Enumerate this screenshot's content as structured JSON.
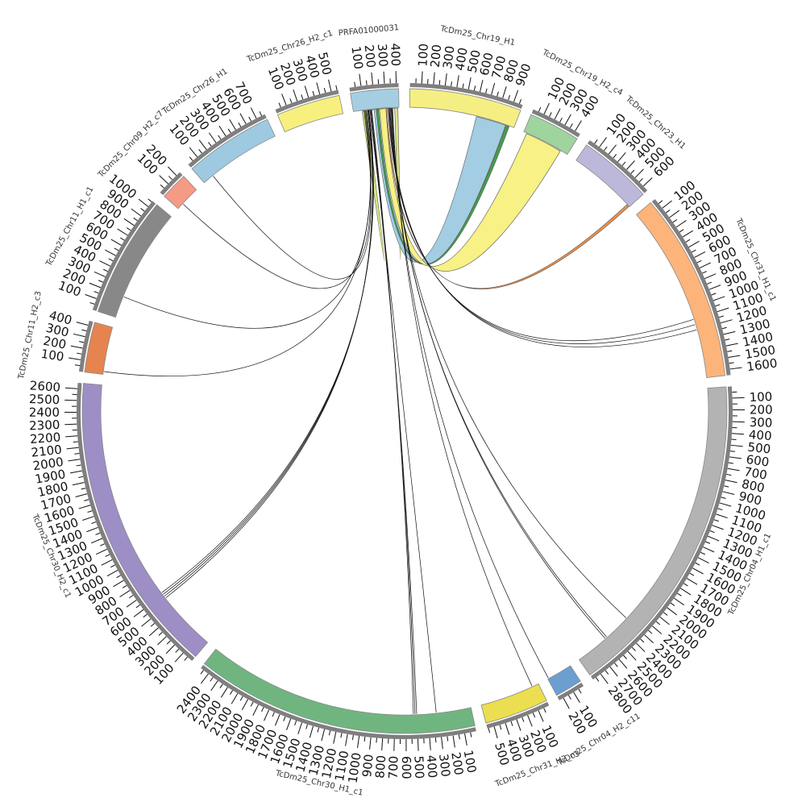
{
  "diagram": {
    "type": "circos",
    "tick_step": 100,
    "segments": [
      {
        "name": "PRFA01000031",
        "length": 420,
        "color": "#a6cee3",
        "labels": [
          100,
          200,
          300,
          400
        ]
      },
      {
        "name": "TcDm25_Chr19_H1",
        "length": 980,
        "color": "#f5ef83",
        "labels": [
          100,
          200,
          300,
          400,
          500,
          600,
          700,
          800,
          900
        ]
      },
      {
        "name": "TcDm25_Chr19_H2_c4",
        "length": 450,
        "color": "#9fd49e",
        "labels": [
          100,
          200,
          300,
          400
        ]
      },
      {
        "name": "TcDm25_Chr23_H1",
        "length": 650,
        "color": "#bcb8da",
        "labels": [
          100,
          200,
          300,
          400,
          500,
          600
        ]
      },
      {
        "name": "TcDm25_Chr31_H1_c1",
        "length": 1650,
        "color": "#fdb47a",
        "labels": [
          100,
          200,
          300,
          400,
          500,
          600,
          700,
          800,
          900,
          1000,
          1100,
          1200,
          1300,
          1400,
          1500,
          1600
        ]
      },
      {
        "name": "TcDm25_Chr04_H1_c1",
        "length": 2880,
        "color": "#b3b3b3",
        "labels": [
          100,
          200,
          300,
          400,
          500,
          600,
          700,
          800,
          900,
          1000,
          1100,
          1200,
          1300,
          1400,
          1500,
          1600,
          1700,
          1800,
          1900,
          2000,
          2100,
          2200,
          2300,
          2400,
          2500,
          2600,
          2700,
          2800
        ]
      },
      {
        "name": "TcDm25_Chr04_H2_c11",
        "length": 240,
        "color": "#6a9fd0",
        "labels": [
          100,
          200
        ]
      },
      {
        "name": "TcDm25_Chr31_H2_c3",
        "length": 560,
        "color": "#ebde50",
        "labels": [
          100,
          200,
          300,
          400,
          500
        ]
      },
      {
        "name": "TcDm25_Chr30_H1_c1",
        "length": 2480,
        "color": "#70b580",
        "labels": [
          100,
          200,
          300,
          400,
          500,
          600,
          700,
          800,
          900,
          1000,
          1100,
          1200,
          1300,
          1400,
          1500,
          1600,
          1700,
          1800,
          1900,
          2000,
          2100,
          2200,
          2300,
          2400
        ]
      },
      {
        "name": "TcDm25_Chr30_H2_c1",
        "length": 2650,
        "color": "#9d8ec6",
        "labels": [
          100,
          200,
          300,
          400,
          500,
          600,
          700,
          800,
          900,
          1000,
          1100,
          1200,
          1300,
          1400,
          1500,
          1600,
          1700,
          1800,
          1900,
          2000,
          2100,
          2200,
          2300,
          2400,
          2500,
          2600
        ]
      },
      {
        "name": "TcDm25_Chr11_H2_c3",
        "length": 440,
        "color": "#e5844f",
        "labels": [
          100,
          200,
          300,
          400
        ]
      },
      {
        "name": "TcDm25_Chr11_H1_c1",
        "length": 1060,
        "color": "#888888",
        "labels": [
          100,
          200,
          300,
          400,
          500,
          600,
          700,
          800,
          900,
          1000
        ]
      },
      {
        "name": "TcDm25_Chr09_H2_c7",
        "length": 240,
        "color": "#f59a85",
        "labels": [
          100,
          200
        ]
      },
      {
        "name": "TcDm25_Chr26_H1",
        "length": 780,
        "color": "#9ecae1",
        "labels": [
          100,
          200,
          300,
          400,
          500,
          600,
          700
        ]
      },
      {
        "name": "TcDm25_Chr26_H2_c1",
        "length": 560,
        "color": "#f7f07f",
        "labels": [
          100,
          200,
          300,
          400,
          500
        ]
      }
    ],
    "links": [
      {
        "from": "PRFA01000031",
        "from_start": 80,
        "from_end": 410,
        "to": "PRFA01000031",
        "to_start": 120,
        "to_end": 380,
        "color": "#d8e27a"
      },
      {
        "from": "PRFA01000031",
        "from_start": 190,
        "from_end": 260,
        "to": "TcDm25_Chr19_H1",
        "to_start": 620,
        "to_end": 900,
        "color": "#9ecae1"
      },
      {
        "from": "PRFA01000031",
        "from_start": 210,
        "from_end": 230,
        "to": "TcDm25_Chr19_H1",
        "to_start": 905,
        "to_end": 935,
        "color": "#3a9a40"
      },
      {
        "from": "PRFA01000031",
        "from_start": 240,
        "from_end": 300,
        "to": "TcDm25_Chr19_H2_c4",
        "to_start": 30,
        "to_end": 380,
        "color": "#f7f07f"
      },
      {
        "from": "PRFA01000031",
        "from_start": 300,
        "from_end": 310,
        "to": "TcDm25_Chr23_H1",
        "to_start": 620,
        "to_end": 645,
        "color": "#f58a3c"
      },
      {
        "from": "PRFA01000031",
        "from_start": 320,
        "from_end": 322,
        "to": "TcDm25_Chr31_H1_c1",
        "to_start": 1100,
        "to_end": 1104,
        "color": "#111111"
      },
      {
        "from": "PRFA01000031",
        "from_start": 326,
        "from_end": 328,
        "to": "TcDm25_Chr31_H1_c1",
        "to_start": 1150,
        "to_end": 1154,
        "color": "#111111"
      },
      {
        "from": "PRFA01000031",
        "from_start": 332,
        "from_end": 334,
        "to": "TcDm25_Chr31_H1_c1",
        "to_start": 1200,
        "to_end": 1204,
        "color": "#111111"
      },
      {
        "from": "PRFA01000031",
        "from_start": 338,
        "from_end": 340,
        "to": "TcDm25_Chr04_H1_c1",
        "to_start": 2300,
        "to_end": 2304,
        "color": "#111111"
      },
      {
        "from": "PRFA01000031",
        "from_start": 344,
        "from_end": 346,
        "to": "TcDm25_Chr04_H1_c1",
        "to_start": 2550,
        "to_end": 2554,
        "color": "#1f4e79"
      },
      {
        "from": "PRFA01000031",
        "from_start": 350,
        "from_end": 352,
        "to": "TcDm25_Chr04_H1_c1",
        "to_start": 2570,
        "to_end": 2574,
        "color": "#111111"
      },
      {
        "from": "PRFA01000031",
        "from_start": 356,
        "from_end": 358,
        "to": "TcDm25_Chr04_H2_c11",
        "to_start": 230,
        "to_end": 234,
        "color": "#111111"
      },
      {
        "from": "PRFA01000031",
        "from_start": 360,
        "from_end": 362,
        "to": "TcDm25_Chr31_H2_c3",
        "to_start": 60,
        "to_end": 64,
        "color": "#7a3b2e"
      },
      {
        "from": "PRFA01000031",
        "from_start": 150,
        "from_end": 152,
        "to": "TcDm25_Chr30_H1_c1",
        "to_start": 320,
        "to_end": 324,
        "color": "#111111"
      },
      {
        "from": "PRFA01000031",
        "from_start": 156,
        "from_end": 158,
        "to": "TcDm25_Chr30_H1_c1",
        "to_start": 500,
        "to_end": 504,
        "color": "#5a6b2a"
      },
      {
        "from": "PRFA01000031",
        "from_start": 162,
        "from_end": 164,
        "to": "TcDm25_Chr30_H1_c1",
        "to_start": 515,
        "to_end": 519,
        "color": "#111111"
      },
      {
        "from": "PRFA01000031",
        "from_start": 168,
        "from_end": 170,
        "to": "TcDm25_Chr30_H1_c1",
        "to_start": 530,
        "to_end": 534,
        "color": "#111111"
      },
      {
        "from": "PRFA01000031",
        "from_start": 130,
        "from_end": 132,
        "to": "TcDm25_Chr30_H2_c1",
        "to_start": 560,
        "to_end": 564,
        "color": "#111111"
      },
      {
        "from": "PRFA01000031",
        "from_start": 134,
        "from_end": 136,
        "to": "TcDm25_Chr30_H2_c1",
        "to_start": 580,
        "to_end": 584,
        "color": "#111111"
      },
      {
        "from": "PRFA01000031",
        "from_start": 138,
        "from_end": 140,
        "to": "TcDm25_Chr30_H2_c1",
        "to_start": 600,
        "to_end": 604,
        "color": "#111111"
      },
      {
        "from": "PRFA01000031",
        "from_start": 142,
        "from_end": 144,
        "to": "TcDm25_Chr30_H2_c1",
        "to_start": 620,
        "to_end": 624,
        "color": "#111111"
      },
      {
        "from": "PRFA01000031",
        "from_start": 120,
        "from_end": 122,
        "to": "TcDm25_Chr11_H2_c3",
        "to_start": 25,
        "to_end": 29,
        "color": "#1f4e79"
      },
      {
        "from": "PRFA01000031",
        "from_start": 112,
        "from_end": 114,
        "to": "TcDm25_Chr11_H1_c1",
        "to_start": 200,
        "to_end": 204,
        "color": "#8a8a2a"
      },
      {
        "from": "PRFA01000031",
        "from_start": 104,
        "from_end": 106,
        "to": "TcDm25_Chr09_H2_c7",
        "to_start": 60,
        "to_end": 64,
        "color": "#111111"
      },
      {
        "from": "PRFA01000031",
        "from_start": 96,
        "from_end": 98,
        "to": "TcDm25_Chr26_H1",
        "to_start": 100,
        "to_end": 104,
        "color": "#111111"
      }
    ]
  }
}
